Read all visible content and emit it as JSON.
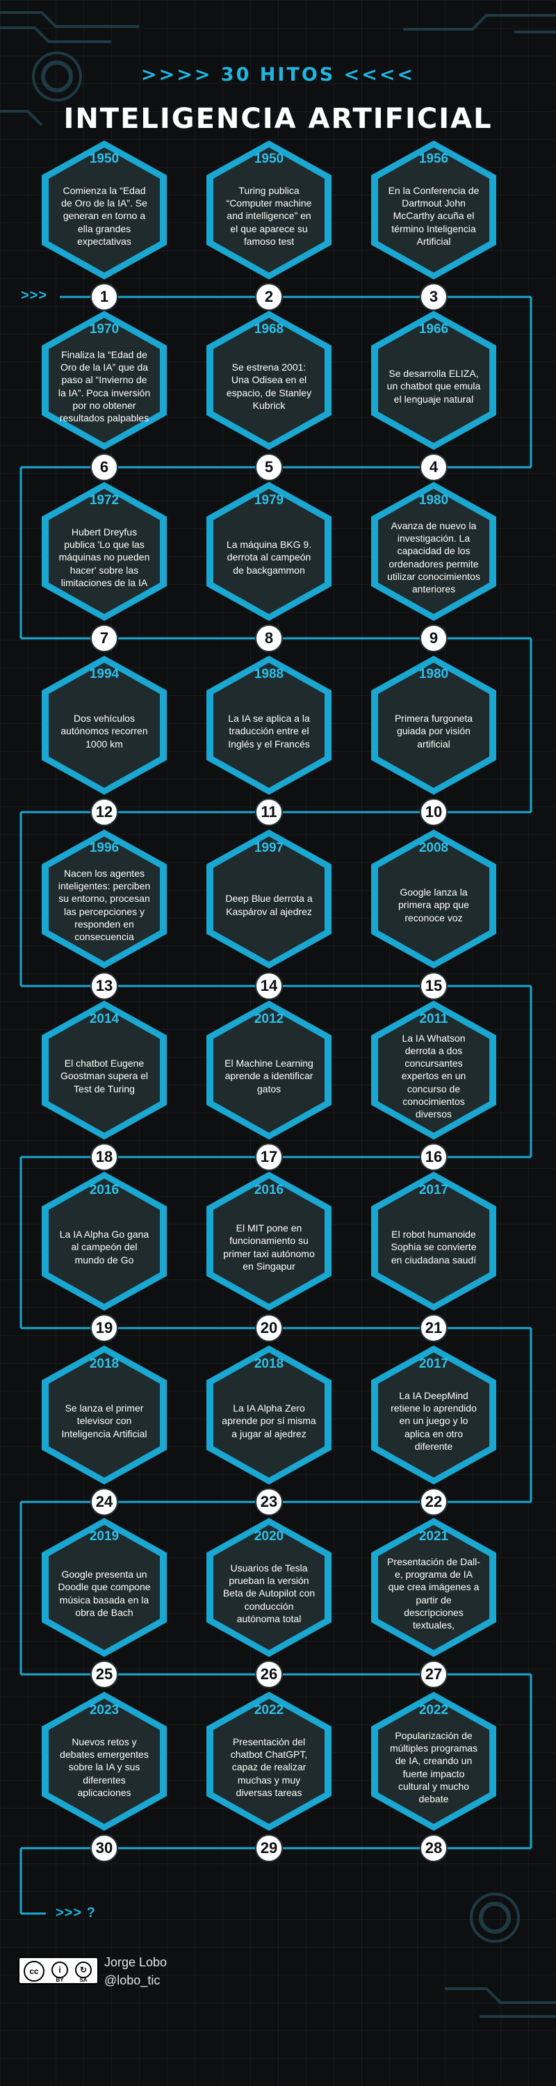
{
  "header": {
    "subtitle": ">>>> 30 HITOS <<<<",
    "title": "INTELIGENCIA ARTIFICIAL"
  },
  "start_arrow": ">>>",
  "end_text": ">>> ?",
  "milestones": [
    {
      "number": "1",
      "year": "1950",
      "text": "Comienza la “Edad de Oro de la IA”. Se generan en torno a ella grandes expectativas"
    },
    {
      "number": "2",
      "year": "1950",
      "text": "Turing publica “Computer machine and intelligence” en el que aparece su famoso test"
    },
    {
      "number": "3",
      "year": "1956",
      "text": "En la Conferencia de Dartmout John McCarthy acuña el término Inteligencia Artificial"
    },
    {
      "number": "4",
      "year": "1966",
      "text": "Se desarrolla ELIZA, un chatbot que emula el lenguaje natural"
    },
    {
      "number": "5",
      "year": "1968",
      "text": "Se estrena 2001: Una Odisea en el espacio, de Stanley Kubrick"
    },
    {
      "number": "6",
      "year": "1970",
      "text": "Finaliza la “Edad de Oro de la IA” que da paso al “Invierno de la IA”. Poca inversión por no obtener resultados palpables"
    },
    {
      "number": "7",
      "year": "1972",
      "text": "Hubert Dreyfus publica 'Lo que las máquinas no pueden hacer' sobre las limitaciones de la IA"
    },
    {
      "number": "8",
      "year": "1979",
      "text": "La máquina BKG 9. derrota al campeón de backgammon"
    },
    {
      "number": "9",
      "year": "1980",
      "text": "Avanza de nuevo la investigación. La capacidad de los ordenadores permite utilizar conocimientos anteriores"
    },
    {
      "number": "10",
      "year": "1980",
      "text": "Primera furgoneta guiada por visión artificial"
    },
    {
      "number": "11",
      "year": "1988",
      "text": "La IA se aplica a la traducción entre el Inglés y el Francés"
    },
    {
      "number": "12",
      "year": "1994",
      "text": "Dos vehículos autónomos recorren 1000 km"
    },
    {
      "number": "13",
      "year": "1996",
      "text": "Nacen los agentes inteligentes: perciben su entorno, procesan las percepciones y responden en consecuencia"
    },
    {
      "number": "14",
      "year": "1997",
      "text": "Deep Blue derrota a Kaspárov al ajedrez"
    },
    {
      "number": "15",
      "year": "2008",
      "text": "Google lanza la primera app que reconoce voz"
    },
    {
      "number": "16",
      "year": "2011",
      "text": "La IA Whatson derrota a dos concursantes expertos en un concurso de conocimientos diversos"
    },
    {
      "number": "17",
      "year": "2012",
      "text": "El Machine Learning aprende a identificar gatos"
    },
    {
      "number": "18",
      "year": "2014",
      "text": "El chatbot Eugene Goostman supera el Test de Turing"
    },
    {
      "number": "19",
      "year": "2016",
      "text": "La IA Alpha Go gana al campeón del mundo de Go"
    },
    {
      "number": "20",
      "year": "2016",
      "text": "El MIT pone en funcionamiento su primer taxi autónomo en Singapur"
    },
    {
      "number": "21",
      "year": "2017",
      "text": "El robot humanoide Sophia se convierte en ciudadana saudí"
    },
    {
      "number": "22",
      "year": "2017",
      "text": "La IA DeepMind retiene lo aprendido en un juego y lo aplica en otro diferente"
    },
    {
      "number": "23",
      "year": "2018",
      "text": "La IA Alpha Zero aprende por sí misma a jugar al ajedrez"
    },
    {
      "number": "24",
      "year": "2018",
      "text": "Se lanza el primer televisor con Inteligencia Artificial"
    },
    {
      "number": "25",
      "year": "2019",
      "text": "Google presenta un Doodle que compone música basada en la obra de Bach"
    },
    {
      "number": "26",
      "year": "2020",
      "text": "Usuarios de Tesla prueban la versión Beta de Autopilot con conducción autónoma total"
    },
    {
      "number": "27",
      "year": "2021",
      "text": "Presentación de Dall-e, programa de IA que crea imágenes a partir de descripciones textuales,"
    },
    {
      "number": "28",
      "year": "2022",
      "text": "Popularización de múltiples programas de IA, creando un fuerte impacto cultural y mucho debate"
    },
    {
      "number": "29",
      "year": "2022",
      "text": "Presentación del chatbot ChatGPT, capaz de realizar muchas y muy diversas tareas"
    },
    {
      "number": "30",
      "year": "2023",
      "text": "Nuevos retos y debates emergentes sobre la IA y sus diferentes aplicaciones"
    }
  ],
  "footer": {
    "license_cc": "cc",
    "license_by": "BY",
    "license_sa": "SA",
    "author_name": "Jorge Lobo",
    "author_handle": "@lobo_tic"
  },
  "colors": {
    "accent": "#1fb6e0",
    "hex_border": "#1aa7d2",
    "hex_fill": "#202b2d",
    "background": "#0d0f10"
  }
}
